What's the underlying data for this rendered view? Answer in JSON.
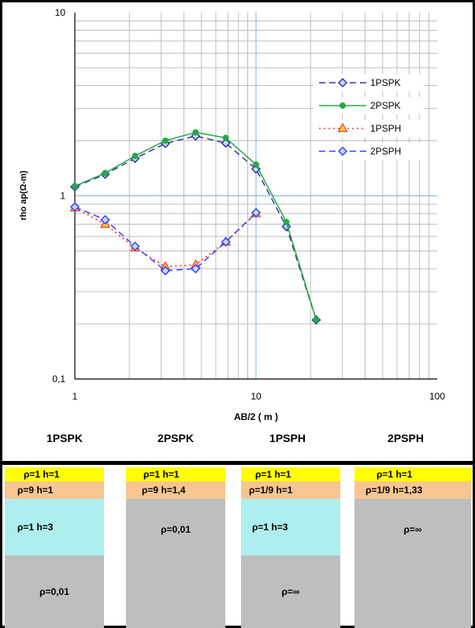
{
  "chart_data": {
    "type": "line",
    "xscale": "log",
    "yscale": "log",
    "xlim": [
      1,
      100
    ],
    "ylim": [
      0.1,
      10
    ],
    "xlabel": "AB/2 ( m )",
    "ylabel": "rho ap(Ω-m)",
    "x_tick_labels": [
      "1",
      "10",
      "100"
    ],
    "y_tick_labels": [
      "0,1",
      "1",
      "10"
    ],
    "grid": true,
    "legend_position": "right",
    "series": [
      {
        "name": "1PSPK",
        "color": "#3333aa",
        "line": "dash",
        "marker": "diamond",
        "x": [
          1,
          1.47,
          2.15,
          3.16,
          4.64,
          6.81,
          10,
          14.7,
          21.5
        ],
        "y": [
          1.12,
          1.31,
          1.6,
          1.93,
          2.12,
          1.94,
          1.4,
          0.68,
          0.21
        ]
      },
      {
        "name": "2PSPK",
        "color": "#22aa44",
        "line": "solid",
        "marker": "circle",
        "x": [
          1,
          1.47,
          2.15,
          3.16,
          4.64,
          6.81,
          10,
          14.7,
          21.5
        ],
        "y": [
          1.13,
          1.33,
          1.65,
          2.0,
          2.22,
          2.07,
          1.48,
          0.72,
          0.21
        ]
      },
      {
        "name": "1PSPH",
        "color": "#ff3333",
        "line": "dot",
        "marker": "triangle",
        "x": [
          1,
          1.47,
          2.15,
          3.16,
          4.64,
          6.81,
          10
        ],
        "y": [
          0.86,
          0.7,
          0.52,
          0.41,
          0.42,
          0.56,
          0.8
        ]
      },
      {
        "name": "2PSPH",
        "color": "#3344ff",
        "line": "dash",
        "marker": "diamond",
        "x": [
          1,
          1.47,
          2.15,
          3.16,
          4.64,
          6.81,
          10
        ],
        "y": [
          0.87,
          0.74,
          0.53,
          0.39,
          0.4,
          0.56,
          0.81
        ]
      }
    ]
  },
  "models": [
    {
      "title": "1PSPK",
      "layers": [
        {
          "text": "ρ=1   h=1",
          "color": "yellow"
        },
        {
          "text": "ρ=9   h=1",
          "color": "orange"
        },
        {
          "text": "ρ=1   h=3",
          "color": "cyan"
        },
        {
          "text": "ρ=0,01",
          "color": "gray"
        }
      ]
    },
    {
      "title": "2PSPK",
      "layers": [
        {
          "text": "ρ=1   h=1",
          "color": "yellow"
        },
        {
          "text": "ρ=9   h=1,4",
          "color": "orange"
        },
        {
          "text": "ρ=0,01",
          "color": "gray"
        }
      ]
    },
    {
      "title": "1PSPH",
      "layers": [
        {
          "text": "ρ=1   h=1",
          "color": "yellow"
        },
        {
          "text": "ρ=1/9   h=1",
          "color": "orange"
        },
        {
          "text": "ρ=1   h=3",
          "color": "cyan"
        },
        {
          "text": "ρ=∞",
          "color": "gray"
        }
      ]
    },
    {
      "title": "2PSPH",
      "layers": [
        {
          "text": "ρ=1   h=1",
          "color": "yellow"
        },
        {
          "text": "ρ=1/9   h=1,33",
          "color": "orange"
        },
        {
          "text": "ρ=∞",
          "color": "gray"
        }
      ]
    }
  ]
}
